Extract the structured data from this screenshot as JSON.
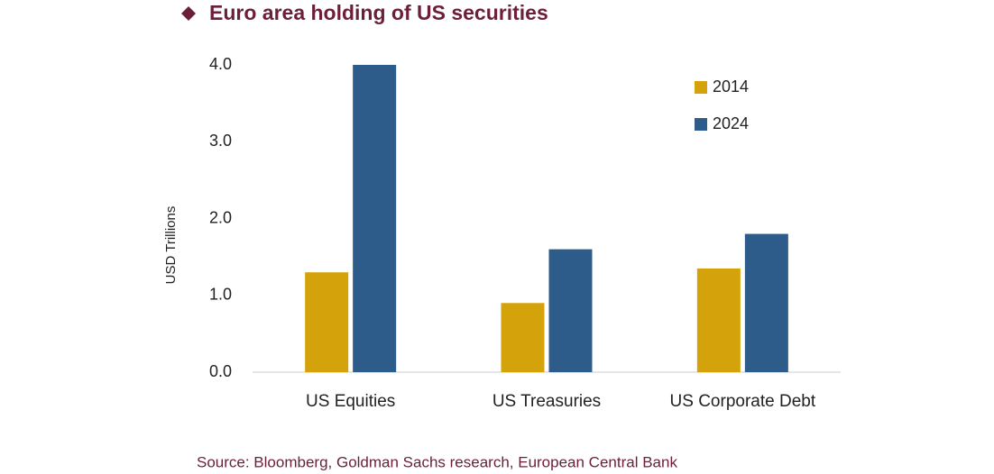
{
  "chart_data": {
    "type": "bar",
    "title": "Euro area holding of US securities",
    "y_label": "USD Trillions",
    "source": "Source: Bloomberg, Goldman Sachs research, European Central Bank",
    "categories": [
      "US Equities",
      "US Treasuries",
      "US Corporate Debt"
    ],
    "series": [
      {
        "name": "2014",
        "color": "#d4a20a",
        "values": [
          1.3,
          0.9,
          1.35
        ]
      },
      {
        "name": "2024",
        "color": "#2e5c8a",
        "values": [
          4.0,
          1.6,
          1.8
        ]
      }
    ],
    "ylim": [
      0,
      4
    ],
    "yticks": [
      {
        "value": 0,
        "label": "0.0"
      },
      {
        "value": 1,
        "label": "1.0"
      },
      {
        "value": 2,
        "label": "2.0"
      },
      {
        "value": 3,
        "label": "3.0"
      },
      {
        "value": 4,
        "label": "4.0"
      }
    ],
    "grid": false,
    "legend": "top-right"
  }
}
